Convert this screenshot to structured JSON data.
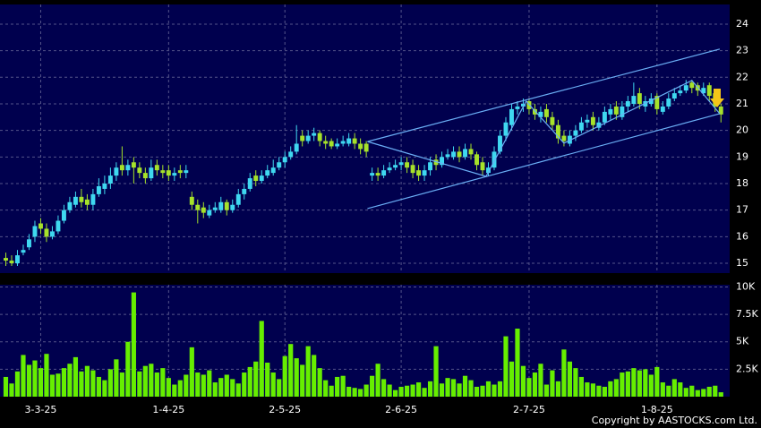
{
  "chart_data": [
    {
      "type": "candlestick",
      "xlim": [
        -1,
        124.5
      ],
      "ylim": [
        14.63,
        24.74
      ],
      "yticks": [
        15,
        16,
        17,
        18,
        19,
        20,
        21,
        22,
        23,
        24
      ],
      "xticks": [
        {
          "value": 6,
          "label": "3-3-25"
        },
        {
          "value": 28,
          "label": "1-4-25"
        },
        {
          "value": 48,
          "label": "2-5-25"
        },
        {
          "value": 68,
          "label": "2-6-25"
        },
        {
          "value": 90,
          "label": "2-7-25"
        },
        {
          "value": 112,
          "label": "1-8-25"
        }
      ],
      "grid": true,
      "up_color": "#3fd8f0",
      "down_color": "#a6e22a",
      "open": [
        15.2,
        15.1,
        15.0,
        15.4,
        15.6,
        16.0,
        16.5,
        16.3,
        16.0,
        16.2,
        16.6,
        17.0,
        17.2,
        17.5,
        17.4,
        17.2,
        17.6,
        17.8,
        18.0,
        18.3,
        18.7,
        18.5,
        18.8,
        18.6,
        18.4,
        18.2,
        18.7,
        18.5,
        18.5,
        18.3,
        18.5,
        18.4,
        17.5,
        17.2,
        17.1,
        16.8,
        17.0,
        17.0,
        17.3,
        17.0,
        17.2,
        17.6,
        17.8,
        18.3,
        18.1,
        18.3,
        18.4,
        18.6,
        18.8,
        19.0,
        19.2,
        19.8,
        19.6,
        19.8,
        19.9,
        19.6,
        19.6,
        19.4,
        19.5,
        19.5,
        19.7,
        19.5,
        19.5,
        18.3,
        18.4,
        18.3,
        18.5,
        18.6,
        18.7,
        18.8,
        18.7,
        18.5,
        18.3,
        18.5,
        18.9,
        18.7,
        19.0,
        19.0,
        19.2,
        19.0,
        19.3,
        19.1,
        18.8,
        18.4,
        18.6,
        19.2,
        19.8,
        20.2,
        20.8,
        20.9,
        21.1,
        20.8,
        20.5,
        20.8,
        20.5,
        20.2,
        19.8,
        19.5,
        19.8,
        20.0,
        20.3,
        20.5,
        20.1,
        20.3,
        20.6,
        20.9,
        20.5,
        20.9,
        21.0,
        21.4,
        20.9,
        21.0,
        21.3,
        20.7,
        20.9,
        21.2,
        21.4,
        21.5,
        21.8,
        21.7,
        21.4,
        21.7,
        21.4,
        20.9
      ],
      "high": [
        15.4,
        15.3,
        15.5,
        15.7,
        16.1,
        16.6,
        16.7,
        16.5,
        16.4,
        16.8,
        17.2,
        17.5,
        17.7,
        17.8,
        17.6,
        17.8,
        18.2,
        18.3,
        18.6,
        18.8,
        19.4,
        18.9,
        19.0,
        18.8,
        18.6,
        18.9,
        18.9,
        18.7,
        18.7,
        18.6,
        18.7,
        18.7,
        17.7,
        17.4,
        17.3,
        17.2,
        17.3,
        17.5,
        17.4,
        17.4,
        17.8,
        18.0,
        18.4,
        18.5,
        18.5,
        18.7,
        18.9,
        19.0,
        19.2,
        19.4,
        20.2,
        20.0,
        20.0,
        20.1,
        20.0,
        19.8,
        19.7,
        19.7,
        19.8,
        19.9,
        19.9,
        19.7,
        19.6,
        18.6,
        18.6,
        18.7,
        18.8,
        18.9,
        19.0,
        19.0,
        18.9,
        18.7,
        18.7,
        19.0,
        19.1,
        19.2,
        19.3,
        19.4,
        19.4,
        19.5,
        19.5,
        19.2,
        19.0,
        18.8,
        19.4,
        20.0,
        20.5,
        21.0,
        21.1,
        21.2,
        21.2,
        21.0,
        20.9,
        21.0,
        20.7,
        20.4,
        20.0,
        20.0,
        20.2,
        20.5,
        20.6,
        20.7,
        20.5,
        20.9,
        21.0,
        21.1,
        21.1,
        21.3,
        21.8,
        21.6,
        21.3,
        21.4,
        21.4,
        21.1,
        21.4,
        21.6,
        21.7,
        21.9,
        21.9,
        21.8,
        21.8,
        21.8,
        21.5,
        21.0
      ],
      "low": [
        14.9,
        14.9,
        14.9,
        15.3,
        15.5,
        15.8,
        16.1,
        15.8,
        15.9,
        16.1,
        16.5,
        16.9,
        17.1,
        17.1,
        17.0,
        17.0,
        17.5,
        17.6,
        17.8,
        18.1,
        18.3,
        18.3,
        18.0,
        18.2,
        18.0,
        18.1,
        18.3,
        18.2,
        18.1,
        18.1,
        18.2,
        18.2,
        17.0,
        16.5,
        16.7,
        16.7,
        16.9,
        16.9,
        16.8,
        16.9,
        17.1,
        17.4,
        17.7,
        17.9,
        18.0,
        18.2,
        18.3,
        18.5,
        18.6,
        18.9,
        19.1,
        19.4,
        19.5,
        19.6,
        19.4,
        19.3,
        19.3,
        19.3,
        19.4,
        19.4,
        19.3,
        19.1,
        19.0,
        18.1,
        18.1,
        18.2,
        18.4,
        18.5,
        18.5,
        18.4,
        18.2,
        18.1,
        18.1,
        18.3,
        18.5,
        18.6,
        18.9,
        18.9,
        18.8,
        18.9,
        18.9,
        18.5,
        18.3,
        18.3,
        18.5,
        19.1,
        19.6,
        20.0,
        20.6,
        20.7,
        20.6,
        20.4,
        20.3,
        20.3,
        20.0,
        19.5,
        19.4,
        19.4,
        19.6,
        19.9,
        20.1,
        20.0,
        20.0,
        20.2,
        20.4,
        20.4,
        20.4,
        20.7,
        20.9,
        20.8,
        20.7,
        20.9,
        20.6,
        20.6,
        20.8,
        21.1,
        21.3,
        21.4,
        21.4,
        21.3,
        21.3,
        21.1,
        20.7,
        20.3
      ],
      "close": [
        15.1,
        15.0,
        15.3,
        15.5,
        15.9,
        16.4,
        16.3,
        16.0,
        16.2,
        16.6,
        17.0,
        17.3,
        17.5,
        17.3,
        17.2,
        17.6,
        17.9,
        18.0,
        18.3,
        18.6,
        18.5,
        18.7,
        18.6,
        18.4,
        18.2,
        18.6,
        18.5,
        18.4,
        18.3,
        18.4,
        18.4,
        18.5,
        17.2,
        17.0,
        16.9,
        17.0,
        17.1,
        17.3,
        17.0,
        17.2,
        17.6,
        17.8,
        18.2,
        18.1,
        18.3,
        18.5,
        18.6,
        18.8,
        19.0,
        19.2,
        19.5,
        19.6,
        19.8,
        19.9,
        19.6,
        19.5,
        19.4,
        19.5,
        19.6,
        19.7,
        19.5,
        19.3,
        19.2,
        18.4,
        18.3,
        18.5,
        18.6,
        18.7,
        18.8,
        18.6,
        18.4,
        18.3,
        18.5,
        18.8,
        18.7,
        19.0,
        19.1,
        19.2,
        19.0,
        19.3,
        19.1,
        18.7,
        18.5,
        18.6,
        19.2,
        19.8,
        20.3,
        20.8,
        20.9,
        21.0,
        20.8,
        20.6,
        20.7,
        20.5,
        20.2,
        19.7,
        19.6,
        19.8,
        20.0,
        20.3,
        20.4,
        20.2,
        20.3,
        20.7,
        20.8,
        20.6,
        20.9,
        21.1,
        21.3,
        21.0,
        21.1,
        21.2,
        20.8,
        20.9,
        21.2,
        21.4,
        21.5,
        21.7,
        21.6,
        21.5,
        21.6,
        21.3,
        20.9,
        20.6
      ],
      "lines": [
        {
          "color": "#6aaef5",
          "x": [
            62.2,
            122.8
          ],
          "y": [
            19.58,
            23.06
          ]
        },
        {
          "color": "#6aaef5",
          "x": [
            62.2,
            122.8
          ],
          "y": [
            17.06,
            20.63
          ]
        },
        {
          "color": "#6aaef5",
          "x": [
            62.2,
            82.6,
            89.5,
            96,
            118,
            122.8
          ],
          "y": [
            19.58,
            18.27,
            21.1,
            19.52,
            21.88,
            20.63
          ]
        }
      ]
    },
    {
      "type": "bar",
      "xlim": [
        -1,
        124.5
      ],
      "ylim": [
        0,
        10200
      ],
      "yticks": [
        {
          "value": 2500,
          "label": "2.5K"
        },
        {
          "value": 5000,
          "label": "5K"
        },
        {
          "value": 7500,
          "label": "7.5K"
        },
        {
          "value": 10000,
          "label": "10K"
        }
      ],
      "grid": true,
      "color": "#66ee00",
      "values": [
        1800,
        1200,
        2300,
        3800,
        2900,
        3300,
        2600,
        3900,
        2000,
        2100,
        2600,
        3000,
        3600,
        2300,
        2800,
        2400,
        1800,
        1500,
        2500,
        3400,
        2200,
        5000,
        9500,
        2300,
        2800,
        3000,
        2200,
        2600,
        1700,
        1100,
        1500,
        2000,
        4500,
        2200,
        2000,
        2400,
        1300,
        1700,
        2000,
        1600,
        1200,
        2200,
        2700,
        3200,
        6900,
        3100,
        2200,
        1600,
        3700,
        4800,
        3500,
        2900,
        4600,
        3800,
        2600,
        1500,
        1000,
        1800,
        1900,
        900,
        800,
        700,
        1100,
        1900,
        3000,
        1600,
        1100,
        600,
        900,
        1000,
        1100,
        1300,
        800,
        1400,
        4600,
        1200,
        1700,
        1600,
        1200,
        1900,
        1500,
        900,
        1000,
        1400,
        1100,
        1400,
        5500,
        3200,
        6200,
        2800,
        1700,
        2200,
        3000,
        1100,
        2400,
        1400,
        4300,
        3200,
        2600,
        1800,
        1300,
        1200,
        1000,
        900,
        1400,
        1600,
        2200,
        2300,
        2600,
        2400,
        2500,
        2000,
        2700,
        1300,
        1000,
        1600,
        1300,
        800,
        1000,
        600,
        700,
        900,
        1000,
        400
      ]
    }
  ],
  "footer": "Copyright by AASTOCKS.com Ltd."
}
